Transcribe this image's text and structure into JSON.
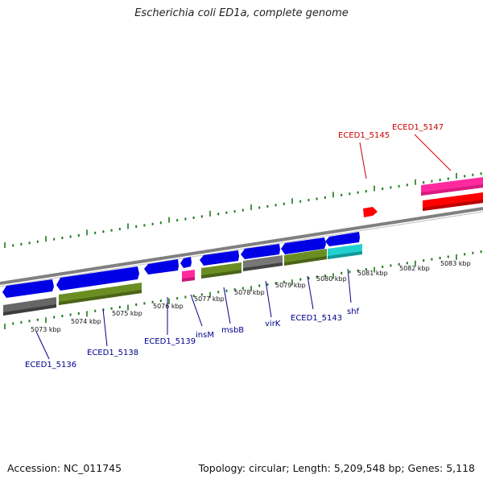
{
  "title": "Escherichia coli ED1a, complete genome",
  "footer": {
    "accession": "Accession: NC_011745",
    "summary": "Topology: circular; Length: 5,209,548 bp; Genes: 5,118"
  },
  "colors": {
    "plus_cds": "#0000e6",
    "olive": "#6b8e23",
    "gray": "#666666",
    "cyan": "#22d0d0",
    "pink": "#ff2b9e",
    "red": "#ff0000",
    "label_blue": "#00008b",
    "label_red": "#cc0000",
    "tick": "#1a7a1a",
    "backbone": "#808080"
  },
  "kbp_labels": [
    "5073 kbp",
    "5074 kbp",
    "5075 kbp",
    "5076 kbp",
    "5077 kbp",
    "5078 kbp",
    "5079 kbp",
    "5080 kbp",
    "5081 kbp",
    "5082 kbp",
    "5083 kbp"
  ],
  "gene_labels": [
    {
      "id": "ECED1_5136",
      "color": "label_blue"
    },
    {
      "id": "ECED1_5138",
      "color": "label_blue"
    },
    {
      "id": "ECED1_5139",
      "color": "label_blue"
    },
    {
      "id": "insM",
      "color": "label_blue"
    },
    {
      "id": "msbB",
      "color": "label_blue"
    },
    {
      "id": "virK",
      "color": "label_blue"
    },
    {
      "id": "ECED1_5143",
      "color": "label_blue"
    },
    {
      "id": "shf",
      "color": "label_blue"
    },
    {
      "id": "ECED1_5145",
      "color": "label_red"
    },
    {
      "id": "ECED1_5147",
      "color": "label_red"
    }
  ]
}
